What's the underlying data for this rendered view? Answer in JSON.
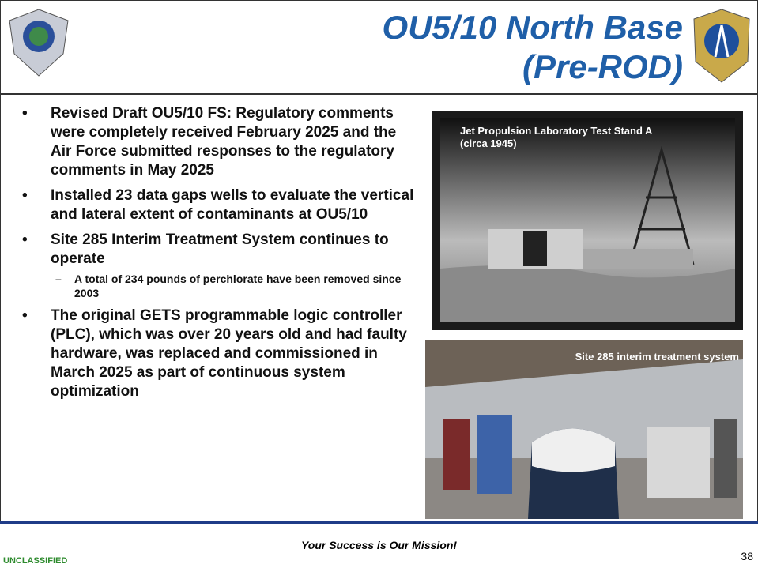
{
  "header": {
    "title_line1": "OU5/10 North Base",
    "title_line2": "(Pre-ROD)"
  },
  "bullets": [
    {
      "text": "Revised Draft OU5/10 FS: Regulatory comments were completely received February 2025 and the Air Force submitted responses to the regulatory comments in May 2025"
    },
    {
      "text": "Installed 23 data gaps wells to evaluate the vertical and lateral extent of contaminants at OU5/10"
    },
    {
      "text": "Site 285 Interim Treatment System continues to operate",
      "sub": [
        "A total of 234 pounds of perchlorate have been removed since 2003"
      ]
    },
    {
      "text": "The original GETS programmable logic controller (PLC), which was over 20 years old and had faulty hardware, was replaced and commissioned in March 2025 as part of continuous system optimization"
    }
  ],
  "photos": [
    {
      "caption": "Jet Propulsion Laboratory Test Stand A (circa 1945)"
    },
    {
      "caption": "Site 285 interim treatment system"
    }
  ],
  "footer": {
    "motto": "Your Success is Our Mission!",
    "classification": "UNCLASSIFIED",
    "page_number": "38"
  }
}
